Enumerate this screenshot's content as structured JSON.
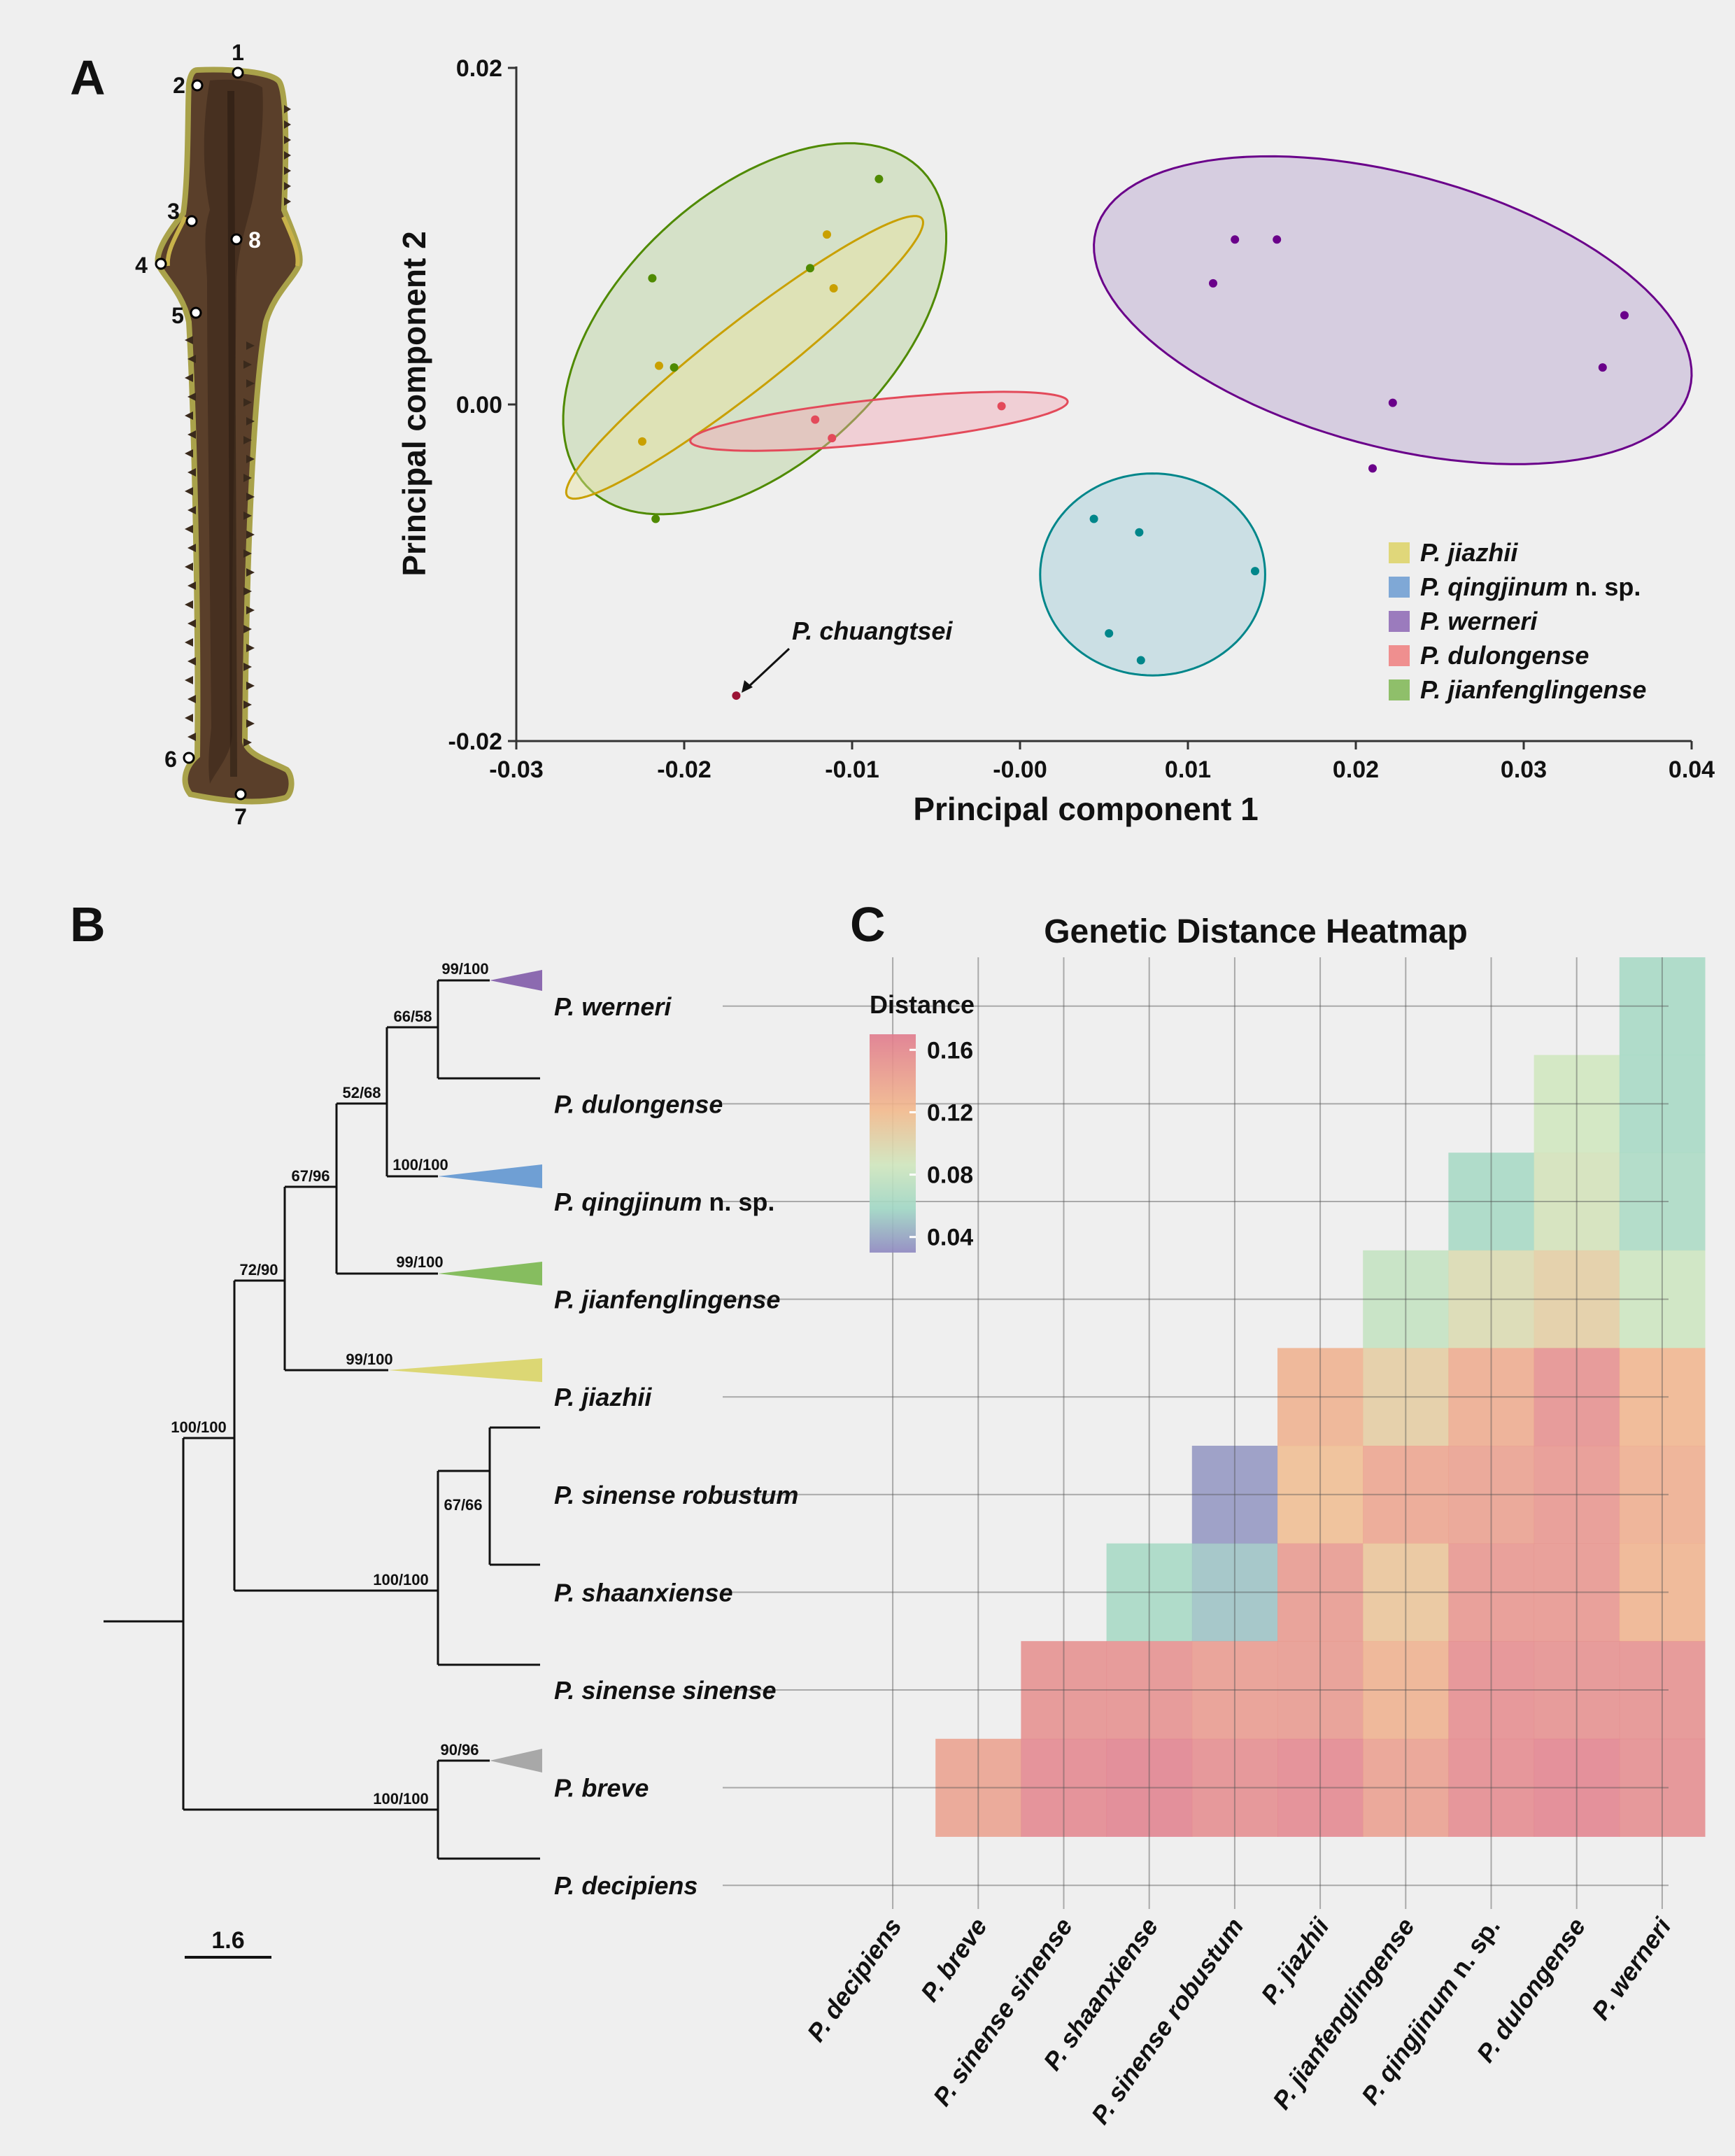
{
  "panels": {
    "a": "A",
    "b": "B",
    "c": "C"
  },
  "colors": {
    "jiazhii": "#c9a000",
    "jiazhii_fill": "#e9e4a0",
    "qingjinum": "#00868a",
    "qingjinum_fill": "#9fcbd8",
    "werneri": "#6a008a",
    "werneri_fill": "#b9a4cf",
    "dulongense": "#e34a5a",
    "dulongense_fill": "#f2a9b6",
    "jianfenglingense": "#4f8a00",
    "jianfenglingense_fill": "#b6d19a",
    "chuangtsei": "#9b1335"
  },
  "specimen": {
    "landmarks": [
      "1",
      "2",
      "3",
      "4",
      "5",
      "6",
      "7",
      "8"
    ]
  },
  "pca": {
    "xlabel": "Principal component 1",
    "ylabel": "Principal component 2",
    "annotation": "P. chuangtsei",
    "legend": [
      {
        "name": "P. jiazhii",
        "suffix": "",
        "color": "#e0d77a"
      },
      {
        "name": "P. qingjinum",
        "suffix": " n. sp.",
        "color": "#7fa8d6"
      },
      {
        "name": "P. werneri",
        "suffix": "",
        "color": "#9b7bbd"
      },
      {
        "name": "P. dulongense",
        "suffix": "",
        "color": "#ef8f8f"
      },
      {
        "name": "P. jianfenglingense",
        "suffix": "",
        "color": "#8fbf6a"
      }
    ]
  },
  "tree": {
    "scale_label": "1.6",
    "tips": [
      {
        "name": "P. werneri",
        "suffix": ""
      },
      {
        "name": "P. dulongense",
        "suffix": ""
      },
      {
        "name": "P. qingjinum",
        "suffix": " n. sp."
      },
      {
        "name": "P. jianfenglingense",
        "suffix": ""
      },
      {
        "name": "P. jiazhii",
        "suffix": ""
      },
      {
        "name": "P. sinense robustum",
        "suffix": ""
      },
      {
        "name": "P. shaanxiense",
        "suffix": ""
      },
      {
        "name": "P. sinense sinense",
        "suffix": ""
      },
      {
        "name": "P. breve",
        "suffix": ""
      },
      {
        "name": "P. decipiens",
        "suffix": ""
      }
    ],
    "supports": [
      "99/100",
      "66/58",
      "52/68",
      "100/100",
      "67/96",
      "99/100",
      "72/90",
      "99/100",
      "100/100",
      "67/66",
      "100/100",
      "90/96",
      "100/100"
    ]
  },
  "heatmap": {
    "title": "Genetic Distance Heatmap",
    "legend_title": "Distance",
    "legend_ticks": [
      "0.16",
      "0.12",
      "0.08",
      "0.04"
    ],
    "x_labels": [
      {
        "name": "P. decipiens",
        "suffix": ""
      },
      {
        "name": "P. breve",
        "suffix": ""
      },
      {
        "name": "P. sinense sinense",
        "suffix": ""
      },
      {
        "name": "P. shaanxiense",
        "suffix": ""
      },
      {
        "name": "P. sinense robustum",
        "suffix": ""
      },
      {
        "name": "P. jiazhii",
        "suffix": ""
      },
      {
        "name": "P. jianfenglingense",
        "suffix": ""
      },
      {
        "name": "P. qingjinum",
        "suffix": " n. sp."
      },
      {
        "name": "P. dulongense",
        "suffix": ""
      },
      {
        "name": "P. werneri",
        "suffix": ""
      }
    ]
  },
  "chart_data": [
    {
      "type": "scatter",
      "xlabel": "Principal component 1",
      "ylabel": "Principal component 2",
      "xlim": [
        -0.03,
        0.04
      ],
      "ylim": [
        -0.02,
        0.02
      ],
      "xticks": [
        "-0.03",
        "-0.02",
        "-0.01",
        "-0.00",
        "0.01",
        "0.02",
        "0.03",
        "0.04"
      ],
      "yticks": [
        "0.02",
        "0.00",
        "-0.02"
      ],
      "legend_position": "bottom-right",
      "series": [
        {
          "name": "P. jiazhii",
          "points": [
            [
              -0.0215,
              0.0023
            ],
            [
              -0.0225,
              -0.0022
            ],
            [
              -0.0115,
              0.0101
            ],
            [
              -0.0111,
              0.0069
            ]
          ]
        },
        {
          "name": "P. jianfenglingense",
          "points": [
            [
              -0.0219,
              0.0075
            ],
            [
              -0.0206,
              0.0022
            ],
            [
              -0.0125,
              0.0081
            ],
            [
              -0.0084,
              0.0134
            ],
            [
              -0.0217,
              -0.0068
            ]
          ]
        },
        {
          "name": "P. dulongense",
          "points": [
            [
              -0.0122,
              -0.0009
            ],
            [
              -0.0112,
              -0.002
            ],
            [
              -0.0011,
              -0.0001
            ]
          ]
        },
        {
          "name": "P. qingjinum n. sp.",
          "points": [
            [
              0.0044,
              -0.0068
            ],
            [
              0.0071,
              -0.0076
            ],
            [
              0.014,
              -0.0099
            ],
            [
              0.0053,
              -0.0136
            ],
            [
              0.0072,
              -0.0152
            ]
          ]
        },
        {
          "name": "P. werneri",
          "points": [
            [
              0.0128,
              0.0098
            ],
            [
              0.0153,
              0.0098
            ],
            [
              0.0115,
              0.0072
            ],
            [
              0.036,
              0.0053
            ],
            [
              0.0347,
              0.0022
            ],
            [
              0.0222,
              0.0001
            ],
            [
              0.021,
              -0.0038
            ]
          ]
        },
        {
          "name": "P. chuangtsei",
          "points": [
            [
              -0.0169,
              -0.0173
            ]
          ]
        }
      ],
      "ellipses": [
        {
          "group": "P. jianfenglingense",
          "center": [
            -0.0158,
            0.0045
          ],
          "semi_axes": [
            0.0137,
            0.008
          ],
          "angle_deg": 43
        },
        {
          "group": "P. jiazhii",
          "center": [
            -0.0164,
            0.0028
          ],
          "semi_axes": [
            0.0134,
            0.002
          ],
          "angle_deg": 38
        },
        {
          "group": "P. dulongense",
          "center": [
            -0.0084,
            -0.001
          ],
          "semi_axes": [
            0.0113,
            0.0013
          ],
          "angle_deg": 6
        },
        {
          "group": "P. werneri",
          "center": [
            0.0222,
            0.0056
          ],
          "semi_axes": [
            0.0183,
            0.0081
          ],
          "angle_deg": -15
        },
        {
          "group": "P. qingjinum n. sp.",
          "center": [
            0.0079,
            -0.0101
          ],
          "semi_axes": [
            0.0067,
            0.006
          ],
          "angle_deg": 0
        }
      ]
    },
    {
      "type": "heatmap",
      "title": "Genetic Distance Heatmap",
      "legend_title": "Distance",
      "color_range": [
        0.03,
        0.17
      ],
      "color_ticks": [
        0.04,
        0.08,
        0.12,
        0.16
      ],
      "rows": [
        "P. werneri",
        "P. dulongense",
        "P. qingjinum n. sp.",
        "P. jianfenglingense",
        "P. jiazhii",
        "P. sinense robustum",
        "P. shaanxiense",
        "P. sinense sinense",
        "P. breve",
        "P. decipiens"
      ],
      "columns": [
        "P. decipiens",
        "P. breve",
        "P. sinense sinense",
        "P. shaanxiense",
        "P. sinense robustum",
        "P. jiazhii",
        "P. jianfenglingense",
        "P. qingjinum n. sp.",
        "P. dulongense",
        "P. werneri"
      ],
      "values": [
        [
          null,
          null,
          null,
          null,
          null,
          null,
          null,
          null,
          null,
          0.063
        ],
        [
          null,
          null,
          null,
          null,
          null,
          null,
          null,
          null,
          0.085,
          0.063
        ],
        [
          null,
          null,
          null,
          null,
          null,
          null,
          null,
          0.063,
          0.088,
          0.065
        ],
        [
          null,
          null,
          null,
          null,
          null,
          null,
          0.078,
          0.095,
          0.105,
          0.083
        ],
        [
          null,
          null,
          null,
          null,
          null,
          0.128,
          0.106,
          0.133,
          0.155,
          0.124
        ],
        [
          null,
          null,
          null,
          null,
          0.035,
          0.118,
          0.138,
          0.142,
          0.15,
          0.13
        ],
        [
          null,
          null,
          null,
          0.063,
          0.052,
          0.148,
          0.112,
          0.15,
          0.15,
          0.126
        ],
        [
          null,
          null,
          0.155,
          0.155,
          0.146,
          0.148,
          0.128,
          0.157,
          0.155,
          0.155
        ],
        [
          null,
          0.141,
          0.162,
          0.166,
          0.158,
          0.162,
          0.143,
          0.16,
          0.165,
          0.158
        ],
        [
          null,
          null,
          null,
          null,
          null,
          null,
          null,
          null,
          null,
          null
        ]
      ]
    }
  ]
}
